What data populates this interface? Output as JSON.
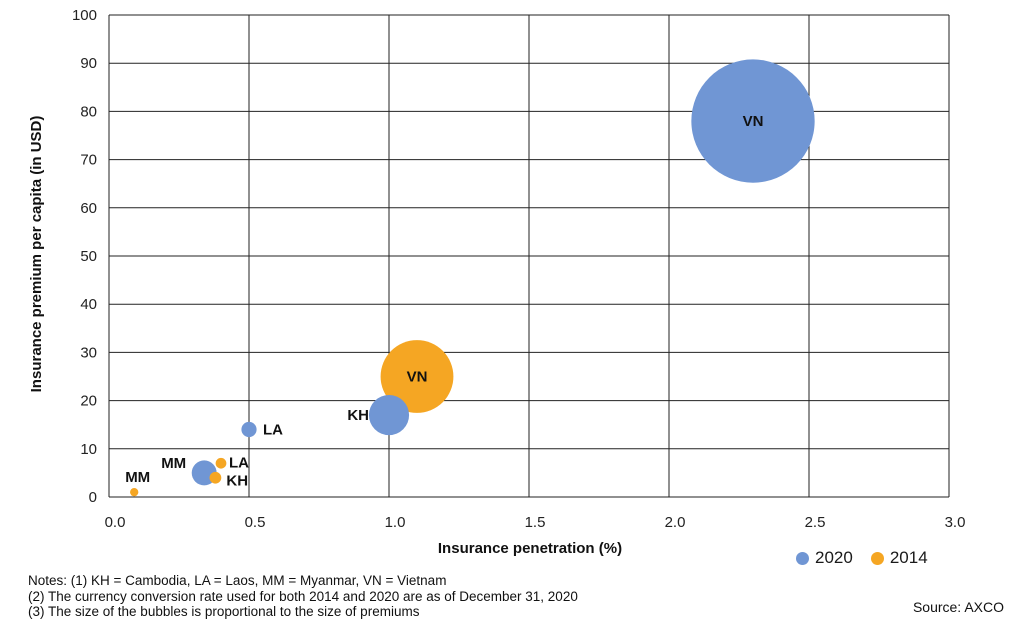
{
  "chart_data": {
    "type": "scatter",
    "xlabel": "Insurance penetration (%)",
    "ylabel": "Insurance premium per capita (in USD)",
    "xlim": [
      0,
      3.0
    ],
    "ylim": [
      0,
      100
    ],
    "x_ticks": [
      "0.0",
      "0.5",
      "1.0",
      "1.5",
      "2.0",
      "2.5",
      "3.0"
    ],
    "y_ticks": [
      "0",
      "10",
      "20",
      "30",
      "40",
      "50",
      "60",
      "70",
      "80",
      "90",
      "100"
    ],
    "grid": true,
    "legend_position": "bottom-right",
    "series": [
      {
        "name": "2020",
        "color": "#7096d4",
        "points": [
          {
            "label": "VN",
            "x": 2.3,
            "y": 78,
            "size": 6.6
          },
          {
            "label": "KH",
            "x": 1.0,
            "y": 17,
            "size": 0.7
          },
          {
            "label": "LA",
            "x": 0.5,
            "y": 14,
            "size": 0.1
          },
          {
            "label": "MM",
            "x": 0.34,
            "y": 5,
            "size": 0.27
          }
        ]
      },
      {
        "name": "2014",
        "color": "#f5a623",
        "points": [
          {
            "label": "VN",
            "x": 1.1,
            "y": 25,
            "size": 2.3
          },
          {
            "label": "LA",
            "x": 0.4,
            "y": 7,
            "size": 0.05
          },
          {
            "label": "KH",
            "x": 0.38,
            "y": 4,
            "size": 0.06
          },
          {
            "label": "MM",
            "x": 0.09,
            "y": 1,
            "size": 0.03
          }
        ]
      }
    ]
  },
  "legend": {
    "items": [
      {
        "label": "2020",
        "color": "#7096d4"
      },
      {
        "label": "2014",
        "color": "#f5a623"
      }
    ]
  },
  "notes": [
    "Notes: (1) KH = Cambodia, LA = Laos, MM = Myanmar, VN = Vietnam",
    "(2) The currency conversion rate used for both 2014 and 2020 are as of December 31, 2020",
    "(3) The size of the bubbles is proportional to the size of premiums"
  ],
  "source": "Source: AXCO"
}
